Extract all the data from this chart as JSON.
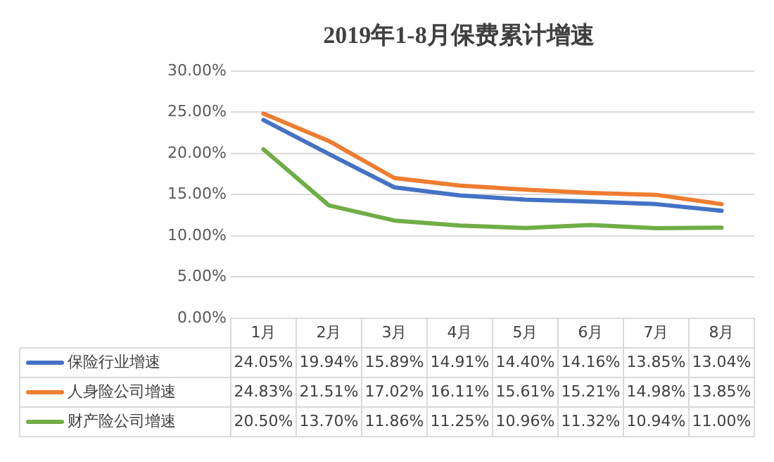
{
  "chart_data": {
    "type": "line",
    "title": "2019年1-8月保费累计增速",
    "categories": [
      "1月",
      "2月",
      "3月",
      "4月",
      "5月",
      "6月",
      "7月",
      "8月"
    ],
    "series": [
      {
        "name": "保险行业增速",
        "color": "#4472c4",
        "values": [
          24.05,
          19.94,
          15.89,
          14.91,
          14.4,
          14.16,
          13.85,
          13.04
        ],
        "value_labels": [
          "24.05%",
          "19.94%",
          "15.89%",
          "14.91%",
          "14.40%",
          "14.16%",
          "13.85%",
          "13.04%"
        ]
      },
      {
        "name": "人身险公司增速",
        "color": "#ed7d31",
        "values": [
          24.83,
          21.51,
          17.02,
          16.11,
          15.61,
          15.21,
          14.98,
          13.85
        ],
        "value_labels": [
          "24.83%",
          "21.51%",
          "17.02%",
          "16.11%",
          "15.61%",
          "15.21%",
          "14.98%",
          "13.85%"
        ]
      },
      {
        "name": "财产险公司增速",
        "color": "#70ad47",
        "values": [
          20.5,
          13.7,
          11.86,
          11.25,
          10.96,
          11.32,
          10.94,
          11.0
        ],
        "value_labels": [
          "20.50%",
          "13.70%",
          "11.86%",
          "11.25%",
          "10.96%",
          "11.32%",
          "10.94%",
          "11.00%"
        ]
      }
    ],
    "ylim": [
      0,
      30
    ],
    "yticks": [
      {
        "value": 0,
        "label": "0.00%"
      },
      {
        "value": 5,
        "label": "5.00%"
      },
      {
        "value": 10,
        "label": "10.00%"
      },
      {
        "value": 15,
        "label": "15.00%"
      },
      {
        "value": 20,
        "label": "20.00%"
      },
      {
        "value": 25,
        "label": "25.00%"
      },
      {
        "value": 30,
        "label": "30.00%"
      }
    ],
    "grid": "y",
    "legend": "bottom",
    "marker": "none",
    "line_style": "solid"
  }
}
